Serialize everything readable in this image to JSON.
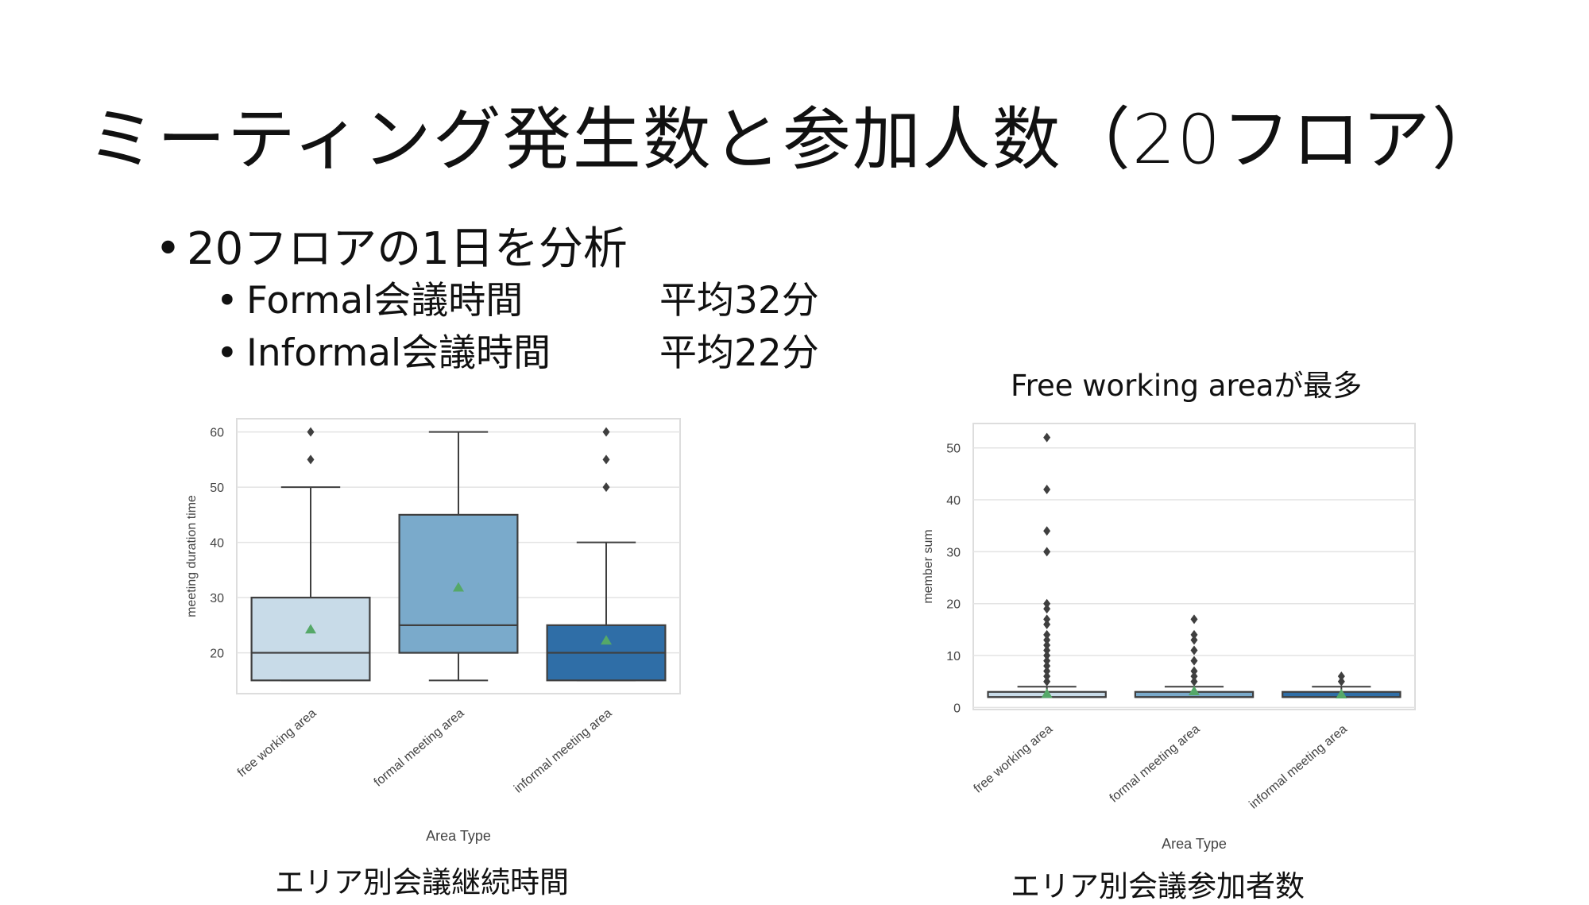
{
  "slide": {
    "title": "ミーティング発生数と参加人数（20フロア）",
    "bullet_main": "20フロアの1日を分析",
    "sub_bullets": [
      {
        "label": "Formal会議時間",
        "value": "平均32分"
      },
      {
        "label": "Informal会議時間",
        "value": "平均22分"
      }
    ],
    "note": "Free working areaが最多",
    "captions": [
      "エリア別会議継続時間",
      "エリア別会議参加者数"
    ]
  },
  "chart_data": [
    {
      "type": "box",
      "xlabel": "Area Type",
      "ylabel": "meeting duration time",
      "ylim": [
        12.6,
        62.4
      ],
      "yticks": [
        20,
        30,
        40,
        50,
        60
      ],
      "categories": [
        "free working area",
        "formal meeting area",
        "informal meeting area"
      ],
      "colors": [
        "#c8dbe8",
        "#7aaacb",
        "#2f6ea7"
      ],
      "mean_color": "#55a868",
      "grid": true,
      "boxes": [
        {
          "whisker_low": 15,
          "q1": 15,
          "median": 20,
          "q3": 30,
          "whisker_high": 50,
          "mean": 24.2,
          "outliers": [
            55,
            60
          ]
        },
        {
          "whisker_low": 15,
          "q1": 20,
          "median": 25,
          "q3": 45,
          "whisker_high": 60,
          "mean": 31.8,
          "outliers": []
        },
        {
          "whisker_low": 15,
          "q1": 15,
          "median": 20,
          "q3": 25,
          "whisker_high": 40,
          "mean": 22.2,
          "outliers": [
            50,
            55,
            60
          ]
        }
      ]
    },
    {
      "type": "box",
      "xlabel": "Area Type",
      "ylabel": "member sum",
      "ylim": [
        -0.4,
        54.7
      ],
      "yticks": [
        0,
        10,
        20,
        30,
        40,
        50
      ],
      "categories": [
        "free working area",
        "formal meeting area",
        "informal meeting area"
      ],
      "colors": [
        "#c8dbe8",
        "#7aaacb",
        "#2f6ea7"
      ],
      "mean_color": "#55a868",
      "grid": true,
      "boxes": [
        {
          "whisker_low": 2,
          "q1": 2,
          "median": 2,
          "q3": 3,
          "whisker_high": 4,
          "mean": 2.6,
          "outliers": [
            5,
            6,
            7,
            8,
            9,
            10,
            11,
            12,
            13,
            14,
            16,
            17,
            19,
            20,
            30,
            34,
            42,
            52
          ]
        },
        {
          "whisker_low": 2,
          "q1": 2,
          "median": 2,
          "q3": 3,
          "whisker_high": 4,
          "mean": 3.1,
          "outliers": [
            5,
            6,
            7,
            9,
            11,
            13,
            14,
            17
          ]
        },
        {
          "whisker_low": 2,
          "q1": 2,
          "median": 2,
          "q3": 3,
          "whisker_high": 4,
          "mean": 2.5,
          "outliers": [
            5,
            6
          ]
        }
      ]
    }
  ]
}
